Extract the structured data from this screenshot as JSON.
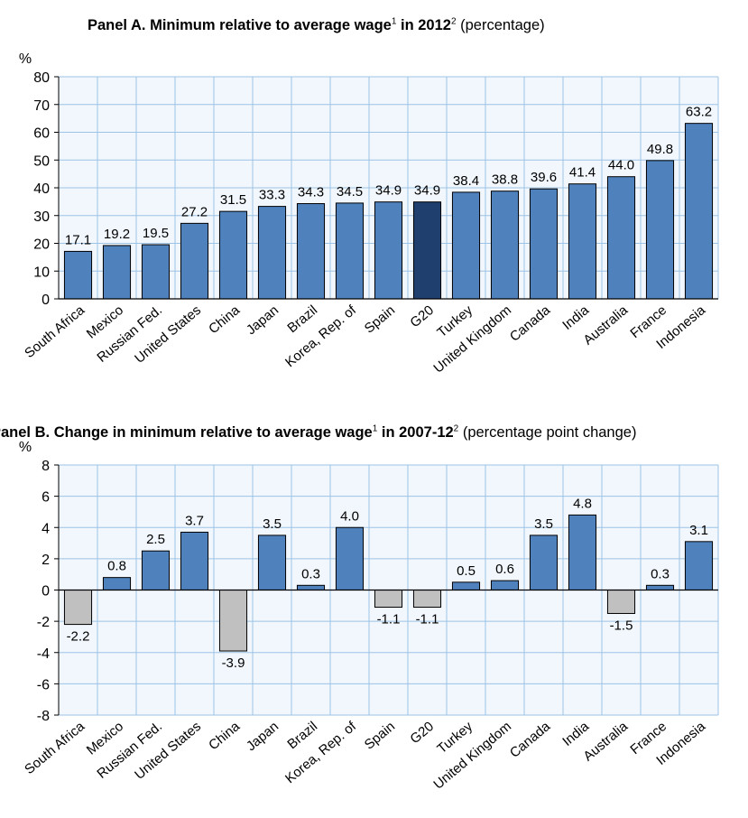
{
  "panel_a": {
    "title_bold": "Panel A.  Minimum relative to average wage",
    "sup1": "1",
    "title_mid": " in 2012",
    "sup2": "2",
    "title_rest": " (percentage)"
  },
  "panel_b": {
    "title_bold": "Panel B.  Change in minimum relative to average wage",
    "sup1": "1",
    "title_mid": " in 2007-12",
    "sup2": "2",
    "title_rest": " (percentage point change)"
  },
  "chart_data": [
    {
      "type": "bar",
      "ylabel": "%",
      "ylim": [
        0,
        80
      ],
      "yticks": [
        0,
        10,
        20,
        30,
        40,
        50,
        60,
        70,
        80
      ],
      "grid": true,
      "categories": [
        "South Africa",
        "Mexico",
        "Russian Fed.",
        "United States",
        "China",
        "Japan",
        "Brazil",
        "Korea, Rep. of",
        "Spain",
        "G20",
        "Turkey",
        "United Kingdom",
        "Canada",
        "India",
        "Australia",
        "France",
        "Indonesia"
      ],
      "values": [
        17.1,
        19.2,
        19.5,
        27.2,
        31.5,
        33.3,
        34.3,
        34.5,
        34.9,
        34.9,
        38.4,
        38.8,
        39.6,
        41.4,
        44.0,
        49.8,
        63.2
      ],
      "value_labels": [
        "17.1",
        "19.2",
        "19.5",
        "27.2",
        "31.5",
        "33.3",
        "34.3",
        "34.5",
        "34.9",
        "34.9",
        "38.4",
        "38.8",
        "39.6",
        "41.4",
        "44.0",
        "49.8",
        "63.2"
      ],
      "colors": {
        "default": "#4f81bd",
        "highlight": "#1f3f6e",
        "highlight_category": "G20",
        "grid": "#9dc3e6",
        "plot_bg": "#f1f7fd"
      }
    },
    {
      "type": "bar",
      "ylabel": "%",
      "ylim": [
        -8,
        8
      ],
      "yticks": [
        -8,
        -6,
        -4,
        -2,
        0,
        2,
        4,
        6,
        8
      ],
      "grid": true,
      "categories": [
        "South Africa",
        "Mexico",
        "Russian Fed.",
        "United States",
        "China",
        "Japan",
        "Brazil",
        "Korea, Rep. of",
        "Spain",
        "G20",
        "Turkey",
        "United Kingdom",
        "Canada",
        "India",
        "Australia",
        "France",
        "Indonesia"
      ],
      "values": [
        -2.2,
        0.8,
        2.5,
        3.7,
        -3.9,
        3.5,
        0.3,
        4.0,
        -1.1,
        -1.1,
        0.5,
        0.6,
        3.5,
        4.8,
        -1.5,
        0.3,
        3.1
      ],
      "value_labels": [
        "-2.2",
        "0.8",
        "2.5",
        "3.7",
        "-3.9",
        "3.5",
        "0.3",
        "4.0",
        "-1.1",
        "-1.1",
        "0.5",
        "0.6",
        "3.5",
        "4.8",
        "-1.5",
        "0.3",
        "3.1"
      ],
      "colors": {
        "positive": "#4f81bd",
        "negative": "#c0c0c0",
        "grid": "#9dc3e6",
        "plot_bg": "#f1f7fd"
      }
    }
  ]
}
